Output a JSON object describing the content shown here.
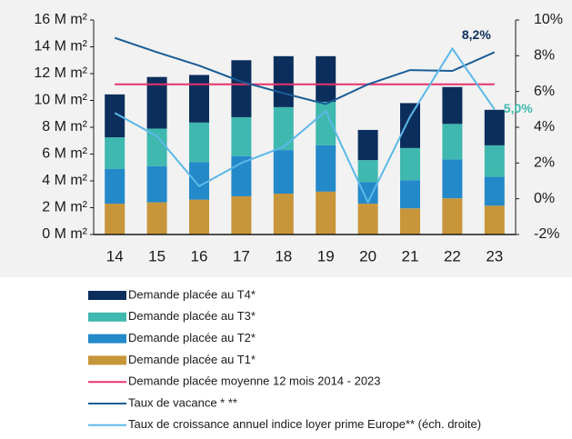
{
  "chart_data": {
    "type": "bar",
    "categories": [
      "14",
      "15",
      "16",
      "17",
      "18",
      "19",
      "20",
      "21",
      "22",
      "23"
    ],
    "series": [
      {
        "name": "Demande placée au T1*",
        "type": "bar",
        "color": "#c8963a",
        "values": [
          2.3,
          2.4,
          2.6,
          2.85,
          3.05,
          3.2,
          2.3,
          1.95,
          2.7,
          2.15
        ]
      },
      {
        "name": "Demande placée au T2*",
        "type": "bar",
        "color": "#2389c9",
        "values": [
          2.6,
          2.7,
          2.8,
          3.0,
          3.25,
          3.45,
          1.6,
          2.1,
          2.9,
          2.15
        ]
      },
      {
        "name": "Demande placée au T3*",
        "type": "bar",
        "color": "#3fb8af",
        "values": [
          2.35,
          2.8,
          2.95,
          2.9,
          3.2,
          3.25,
          1.65,
          2.4,
          2.65,
          2.35
        ]
      },
      {
        "name": "Demande placée au T4*",
        "type": "bar",
        "color": "#0c2e5c",
        "values": [
          3.2,
          3.85,
          3.55,
          4.25,
          3.8,
          3.4,
          2.25,
          3.35,
          2.75,
          2.65
        ]
      },
      {
        "name": "Demande placée moyenne 12 mois 2014 - 2023",
        "type": "line",
        "color": "#e8336b",
        "values": [
          11.2,
          11.2,
          11.2,
          11.2,
          11.2,
          11.2,
          11.2,
          11.2,
          11.2,
          11.2
        ]
      },
      {
        "name": "Taux de vacance * **",
        "type": "line",
        "axis": "y2",
        "color": "#1a5c96",
        "values": [
          9.0,
          8.2,
          7.45,
          6.55,
          5.9,
          5.3,
          6.4,
          7.2,
          7.15,
          8.2
        ],
        "value_labels": [
          null,
          null,
          null,
          null,
          null,
          null,
          null,
          null,
          null,
          "8,2%"
        ]
      },
      {
        "name": "Taux de croissance annuel indice loyer prime Europe** (éch. droite)",
        "type": "line",
        "axis": "y2",
        "color": "#5bb8e8",
        "values": [
          4.8,
          3.5,
          0.7,
          2.0,
          2.9,
          4.9,
          -0.2,
          4.6,
          8.4,
          5.0
        ],
        "value_labels": [
          null,
          null,
          null,
          null,
          null,
          null,
          null,
          null,
          null,
          "5,0%"
        ]
      }
    ],
    "ylim": [
      0,
      16
    ],
    "yticks": [
      {
        "value": 0,
        "label": "0 M m²"
      },
      {
        "value": 2,
        "label": "2 M m²"
      },
      {
        "value": 4,
        "label": "4 M m²"
      },
      {
        "value": 6,
        "label": "6 M m²"
      },
      {
        "value": 8,
        "label": "8 M m²"
      },
      {
        "value": 10,
        "label": "10 M m²"
      },
      {
        "value": 12,
        "label": "12 M m²"
      },
      {
        "value": 14,
        "label": "14 M m²"
      },
      {
        "value": 16,
        "label": "16 M m²"
      }
    ],
    "y2lim": [
      -2,
      10
    ],
    "y2ticks": [
      {
        "value": -2,
        "label": "-2%"
      },
      {
        "value": 0,
        "label": "0%"
      },
      {
        "value": 2,
        "label": "2%"
      },
      {
        "value": 4,
        "label": "4%"
      },
      {
        "value": 6,
        "label": "6%"
      },
      {
        "value": 8,
        "label": "8%"
      },
      {
        "value": 10,
        "label": "10%"
      }
    ],
    "legend": "bottom"
  }
}
